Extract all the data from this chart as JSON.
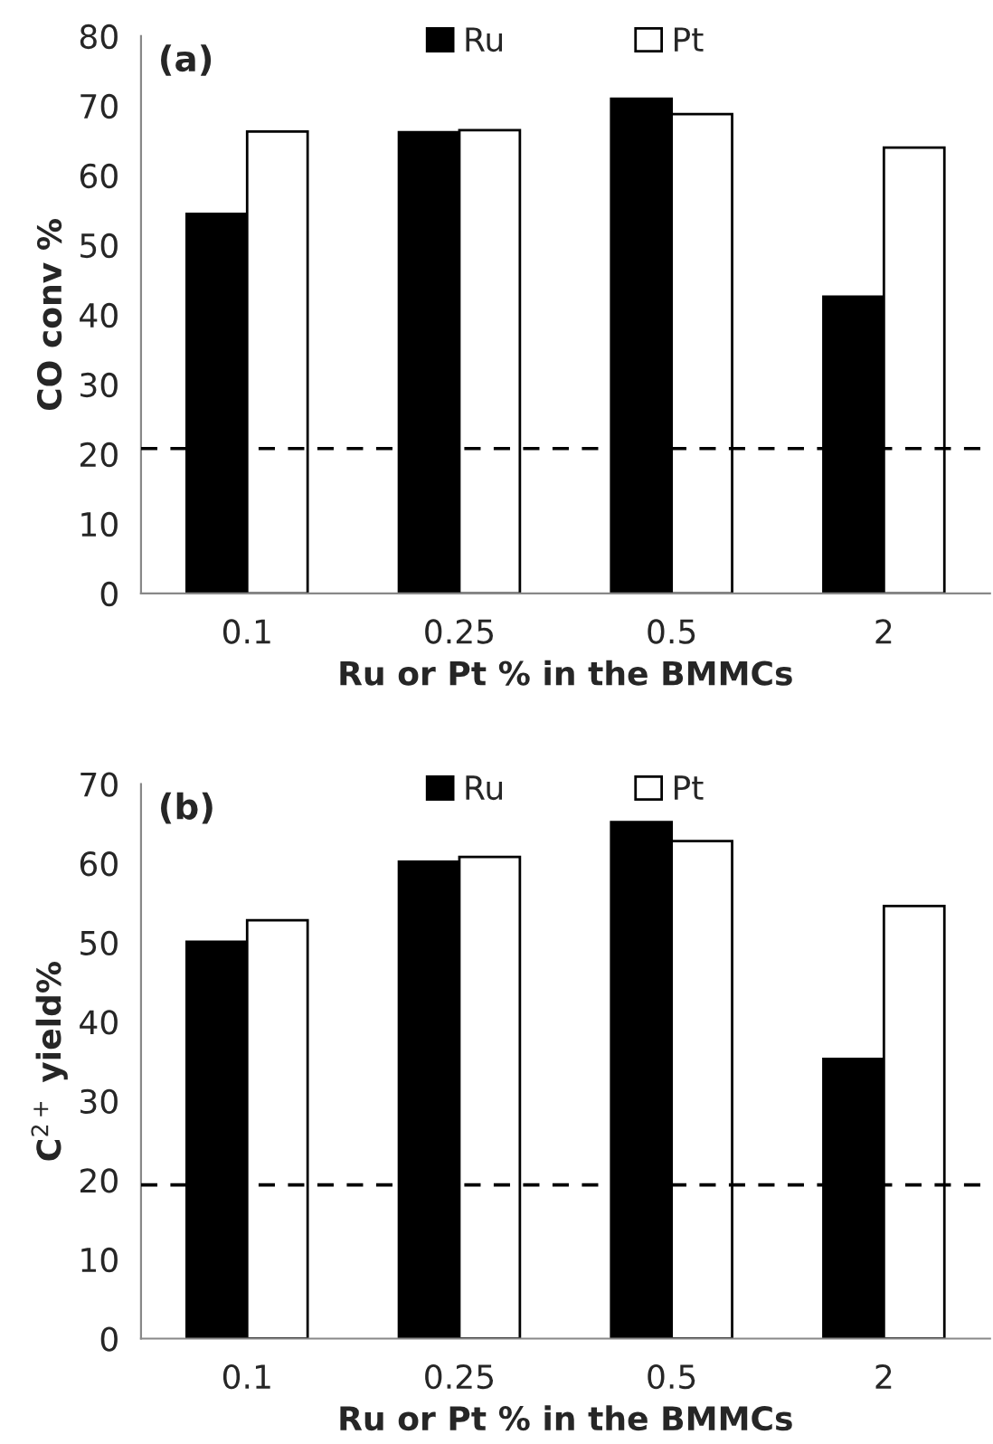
{
  "chart_data": [
    {
      "type": "bar",
      "title": "(a)",
      "xlabel": "Ru or Pt % in the BMMCs",
      "ylabel": "CO conv %",
      "categories": [
        "0.1",
        "0.25",
        "0.5",
        "2"
      ],
      "series": [
        {
          "name": "Ru",
          "color": "#000000",
          "values": [
            54.5,
            66.2,
            71.0,
            42.6
          ]
        },
        {
          "name": "Pt",
          "color": "#ffffff",
          "values": [
            66.3,
            66.5,
            68.8,
            64.0
          ]
        }
      ],
      "ylim": [
        0,
        80
      ],
      "yticks": [
        0,
        10,
        20,
        30,
        40,
        50,
        60,
        70,
        80
      ],
      "ref_lines": [
        {
          "axis": "y",
          "value": 20.8,
          "color": "#000000",
          "line_style": "dashed"
        }
      ],
      "legend": "top",
      "grid": false
    },
    {
      "type": "bar",
      "title": "(b)",
      "xlabel": "Ru or Pt % in the BMMCs",
      "ylabel": "C$^{2+}$ yield%",
      "categories": [
        "0.1",
        "0.25",
        "0.5",
        "2"
      ],
      "series": [
        {
          "name": "Ru",
          "color": "#000000",
          "values": [
            50.1,
            60.2,
            65.2,
            35.3
          ]
        },
        {
          "name": "Pt",
          "color": "#ffffff",
          "values": [
            52.8,
            60.8,
            62.8,
            54.6
          ]
        }
      ],
      "ylim": [
        0,
        70
      ],
      "yticks": [
        0,
        10,
        20,
        30,
        40,
        50,
        60,
        70
      ],
      "ref_lines": [
        {
          "axis": "y",
          "value": 19.4,
          "color": "#000000",
          "line_style": "dashed"
        }
      ],
      "legend": "top",
      "grid": false
    }
  ]
}
